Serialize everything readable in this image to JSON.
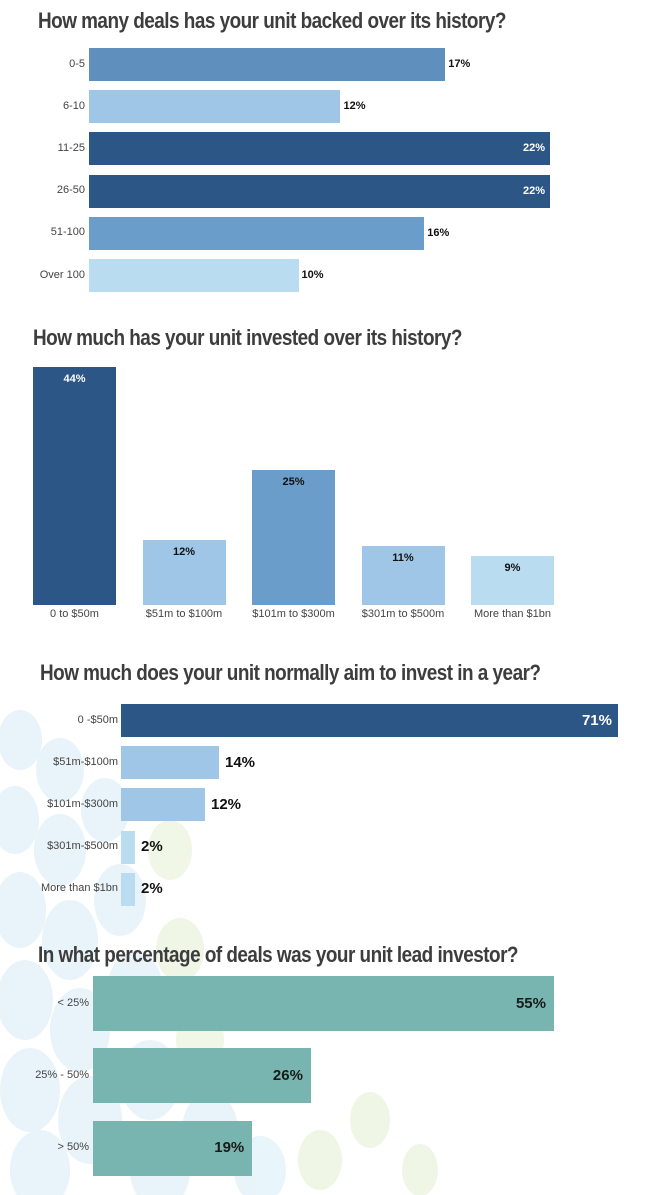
{
  "colors": {
    "navy": "#2c5685",
    "mid_blue": "#5f8fbd",
    "steel_blue": "#6a9dc9",
    "light_blue": "#9fc6e6",
    "pale_blue": "#b9dcf1",
    "teal": "#79b5b0"
  },
  "chart_data": [
    {
      "type": "bar",
      "orientation": "horizontal",
      "title": "How many deals has your unit backed over its history?",
      "categories": [
        "0-5",
        "6-10",
        "11-25",
        "26-50",
        "51-100",
        "Over 100"
      ],
      "values": [
        17,
        12,
        22,
        22,
        16,
        10
      ],
      "value_labels": [
        "17%",
        "12%",
        "22%",
        "22%",
        "16%",
        "10%"
      ],
      "colors": [
        "#5f8fbd",
        "#9fc6e6",
        "#2c5685",
        "#2c5685",
        "#6a9dc9",
        "#b9dcf1"
      ],
      "xlim": [
        0,
        22
      ],
      "unit": "%"
    },
    {
      "type": "bar",
      "orientation": "vertical",
      "title": "How much has your unit invested over its history?",
      "categories": [
        "0 to $50m",
        "$51m to $100m",
        "$101m to $300m",
        "$301m to $500m",
        "More than $1bn"
      ],
      "values": [
        44,
        12,
        25,
        11,
        9
      ],
      "value_labels": [
        "44%",
        "12%",
        "25%",
        "11%",
        "9%"
      ],
      "colors": [
        "#2c5685",
        "#9fc6e6",
        "#6a9dc9",
        "#9fc6e6",
        "#b9dcf1"
      ],
      "ylim": [
        0,
        44
      ],
      "unit": "%"
    },
    {
      "type": "bar",
      "orientation": "horizontal",
      "title": "How much does your unit normally aim to invest in a year?",
      "categories": [
        "0 -$50m",
        "$51m-$100m",
        "$101m-$300m",
        "$301m-$500m",
        "More than $1bn"
      ],
      "values": [
        71,
        14,
        12,
        2,
        2
      ],
      "value_labels": [
        "71%",
        "14%",
        "12%",
        "2%",
        "2%"
      ],
      "colors": [
        "#2c5685",
        "#9fc6e6",
        "#9fc6e6",
        "#b9dcf1",
        "#b9dcf1"
      ],
      "xlim": [
        0,
        71
      ],
      "unit": "%"
    },
    {
      "type": "bar",
      "orientation": "horizontal",
      "title": "In what percentage of deals was your unit lead investor?",
      "categories": [
        "< 25%",
        "25% - 50%",
        "> 50%"
      ],
      "values": [
        55,
        26,
        19
      ],
      "value_labels": [
        "55%",
        "26%",
        "19%"
      ],
      "colors": [
        "#79b5b0",
        "#79b5b0",
        "#79b5b0"
      ],
      "xlim": [
        0,
        55
      ],
      "unit": "%"
    }
  ]
}
